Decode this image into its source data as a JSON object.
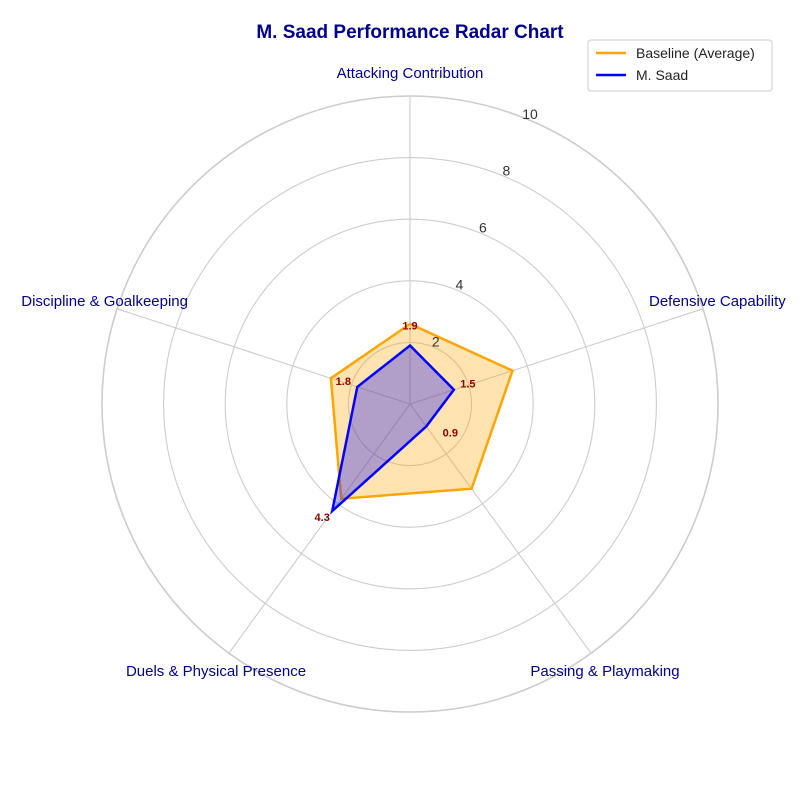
{
  "chart_data": {
    "type": "radar",
    "title": "M. Saad Performance Radar Chart",
    "categories": [
      "Attacking Contribution",
      "Defensive Capability",
      "Passing & Playmaking",
      "Duels & Physical Presence",
      "Discipline & Goalkeeping"
    ],
    "rlim": [
      0,
      10
    ],
    "rticks": [
      2,
      4,
      6,
      8,
      10
    ],
    "grid": true,
    "legend_position": "top-right",
    "series": [
      {
        "name": "Baseline (Average)",
        "values": [
          2.6,
          3.5,
          3.4,
          3.8,
          2.7
        ],
        "color": "#FFA500",
        "fill_opacity": 0.3
      },
      {
        "name": "M. Saad",
        "values": [
          1.9,
          1.5,
          0.9,
          4.3,
          1.8
        ],
        "color": "#0000FF",
        "fill_opacity": 0.3
      }
    ],
    "value_labels": [
      "1.9",
      "1.5",
      "0.9",
      "4.3",
      "1.8"
    ],
    "colors": {
      "title": "#00008B",
      "axis_label": "#00008B",
      "value_label": "#8B0000",
      "grid": "#CCCCCC"
    }
  }
}
